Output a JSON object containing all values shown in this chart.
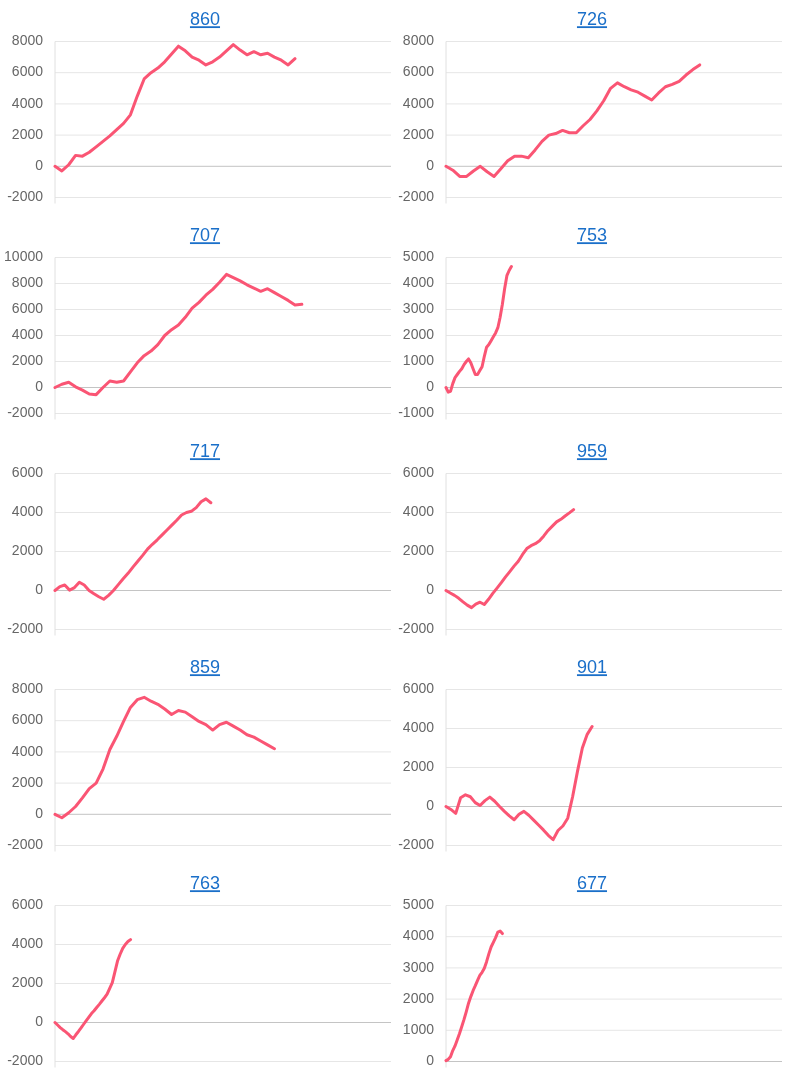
{
  "chart_data": [
    {
      "type": "line",
      "title": "860",
      "categories": [
        null,
        null,
        null,
        null,
        null,
        null,
        null,
        null,
        null,
        null,
        null,
        null,
        null,
        null,
        null,
        null,
        null,
        null,
        null,
        null,
        null,
        null,
        null,
        null,
        null,
        null,
        null,
        null,
        null,
        null,
        null,
        null,
        null,
        null,
        null,
        null,
        null,
        null,
        null,
        null,
        null,
        null,
        null,
        null,
        null,
        null,
        null,
        null,
        null,
        null
      ],
      "values": [
        0,
        -300,
        100,
        700,
        650,
        900,
        1250,
        1600,
        1950,
        2350,
        2750,
        3300,
        4500,
        5600,
        6000,
        6300,
        6700,
        7200,
        7700,
        7400,
        7000,
        6800,
        6500,
        6700,
        7000,
        7400,
        7800,
        7450,
        7150,
        7350,
        7150,
        7250,
        7000,
        6800,
        6500,
        6900,
        null,
        null,
        null,
        null,
        null,
        null,
        null,
        null,
        null,
        null,
        null,
        null,
        null,
        null
      ],
      "color": "#fa5574",
      "ylim": [
        -2000,
        8000
      ],
      "yticks": [
        -2000,
        0,
        2000,
        4000,
        6000,
        8000
      ],
      "grid": "y",
      "tick_labels": "y"
    },
    {
      "type": "line",
      "title": "726",
      "categories": [
        null,
        null,
        null,
        null,
        null,
        null,
        null,
        null,
        null,
        null,
        null,
        null,
        null,
        null,
        null,
        null,
        null,
        null,
        null,
        null,
        null,
        null,
        null,
        null,
        null,
        null,
        null,
        null,
        null,
        null,
        null,
        null,
        null,
        null,
        null,
        null,
        null,
        null,
        null,
        null,
        null,
        null,
        null,
        null,
        null,
        null,
        null,
        null,
        null,
        null
      ],
      "values": [
        0,
        -250,
        -650,
        -650,
        -300,
        0,
        -350,
        -650,
        -150,
        350,
        650,
        650,
        550,
        1050,
        1600,
        2000,
        2100,
        2300,
        2150,
        2150,
        2600,
        3000,
        3550,
        4200,
        5000,
        5350,
        5100,
        4900,
        4750,
        4500,
        4250,
        4700,
        5100,
        5250,
        5450,
        5850,
        6200,
        6500,
        null,
        null,
        null,
        null,
        null,
        null,
        null,
        null,
        null,
        null,
        null,
        null
      ],
      "color": "#fa5574",
      "ylim": [
        -2000,
        8000
      ],
      "yticks": [
        -2000,
        0,
        2000,
        4000,
        6000,
        8000
      ],
      "grid": "y",
      "tick_labels": "y"
    },
    {
      "type": "line",
      "title": "707",
      "categories": [
        null,
        null,
        null,
        null,
        null,
        null,
        null,
        null,
        null,
        null,
        null,
        null,
        null,
        null,
        null,
        null,
        null,
        null,
        null,
        null,
        null,
        null,
        null,
        null,
        null,
        null,
        null,
        null,
        null,
        null,
        null,
        null,
        null,
        null,
        null,
        null,
        null,
        null,
        null,
        null,
        null,
        null,
        null,
        null,
        null,
        null,
        null,
        null,
        null,
        null
      ],
      "values": [
        0,
        250,
        400,
        50,
        -200,
        -500,
        -550,
        0,
        500,
        400,
        500,
        1200,
        1900,
        2450,
        2800,
        3300,
        4000,
        4450,
        4800,
        5400,
        6100,
        6550,
        7100,
        7550,
        8100,
        8700,
        8450,
        8200,
        7900,
        7650,
        7400,
        7600,
        7300,
        7000,
        6700,
        6350,
        6400,
        null,
        null,
        null,
        null,
        null,
        null,
        null,
        null,
        null,
        null,
        null,
        null,
        null
      ],
      "color": "#fa5574",
      "ylim": [
        -2000,
        10000
      ],
      "yticks": [
        -2000,
        0,
        2000,
        4000,
        6000,
        8000,
        10000
      ],
      "grid": "y",
      "tick_labels": "y"
    },
    {
      "type": "line",
      "title": "753",
      "categories": [
        null,
        null,
        null,
        null,
        null,
        null,
        null,
        null,
        null,
        null,
        null,
        null,
        null,
        null,
        null,
        null,
        null,
        null,
        null,
        null,
        null,
        null,
        null,
        null,
        null,
        null,
        null,
        null,
        null,
        null,
        null,
        null,
        null,
        null,
        null,
        null,
        null,
        null,
        null,
        null,
        null,
        null,
        null,
        null,
        null,
        null,
        null,
        null,
        null,
        null,
        null,
        null,
        null,
        null,
        null,
        null,
        null,
        null,
        null,
        null,
        null,
        null,
        null,
        null,
        null,
        null,
        null,
        null,
        null,
        null,
        null,
        null,
        null,
        null,
        null,
        null,
        null,
        null,
        null,
        null,
        null,
        null,
        null,
        null,
        null,
        null,
        null,
        null,
        null,
        null,
        null,
        null,
        null,
        null,
        null,
        null,
        null,
        null,
        null,
        null,
        null,
        null,
        null,
        null,
        null,
        null,
        null,
        null,
        null,
        null,
        null,
        null,
        null,
        null,
        null,
        null,
        null,
        null,
        null,
        null,
        null,
        null,
        null,
        null,
        null,
        null,
        null,
        null,
        null,
        null,
        null,
        null,
        null,
        null,
        null,
        null,
        null,
        null,
        null,
        null,
        null,
        null,
        null,
        null,
        null,
        null,
        null,
        null,
        null,
        null
      ],
      "values": [
        0,
        -180,
        -150,
        150,
        380,
        500,
        620,
        720,
        880,
        1000,
        1100,
        950,
        720,
        500,
        500,
        650,
        800,
        1200,
        1550,
        1650,
        1800,
        1950,
        2100,
        2300,
        2700,
        3200,
        3800,
        4300,
        4500,
        4650,
        null,
        null,
        null,
        null,
        null,
        null,
        null,
        null,
        null,
        null,
        null,
        null,
        null,
        null,
        null,
        null,
        null,
        null,
        null,
        null,
        null,
        null,
        null,
        null,
        null,
        null,
        null,
        null,
        null,
        null,
        null,
        null,
        null,
        null,
        null,
        null,
        null,
        null,
        null,
        null,
        null,
        null,
        null,
        null,
        null,
        null,
        null,
        null,
        null,
        null,
        null,
        null,
        null,
        null,
        null,
        null,
        null,
        null,
        null,
        null,
        null,
        null,
        null,
        null,
        null,
        null,
        null,
        null,
        null,
        null,
        null,
        null,
        null,
        null,
        null,
        null,
        null,
        null,
        null,
        null,
        null,
        null,
        null,
        null,
        null,
        null,
        null,
        null,
        null,
        null,
        null,
        null,
        null,
        null,
        null,
        null,
        null,
        null,
        null,
        null,
        null,
        null,
        null,
        null,
        null,
        null,
        null,
        null,
        null,
        null,
        null,
        null,
        null,
        null,
        null,
        null,
        null,
        null,
        null,
        null
      ],
      "color": "#fa5574",
      "ylim": [
        -1000,
        5000
      ],
      "yticks": [
        -1000,
        0,
        1000,
        2000,
        3000,
        4000,
        5000
      ],
      "grid": "y",
      "tick_labels": "y"
    },
    {
      "type": "line",
      "title": "717",
      "categories": [
        null,
        null,
        null,
        null,
        null,
        null,
        null,
        null,
        null,
        null,
        null,
        null,
        null,
        null,
        null,
        null,
        null,
        null,
        null,
        null,
        null,
        null,
        null,
        null,
        null,
        null,
        null,
        null,
        null,
        null,
        null,
        null,
        null,
        null,
        null,
        null,
        null,
        null,
        null,
        null,
        null,
        null,
        null,
        null,
        null,
        null,
        null,
        null,
        null,
        null,
        null,
        null,
        null,
        null,
        null,
        null,
        null,
        null,
        null,
        null,
        null,
        null,
        null,
        null,
        null,
        null,
        null,
        null,
        null,
        null
      ],
      "values": [
        0,
        200,
        280,
        20,
        150,
        420,
        280,
        0,
        -170,
        -320,
        -450,
        -250,
        0,
        300,
        600,
        880,
        1200,
        1500,
        1800,
        2120,
        2370,
        2600,
        2850,
        3100,
        3350,
        3600,
        3870,
        4000,
        4060,
        4250,
        4550,
        4700,
        4500,
        null,
        null,
        null,
        null,
        null,
        null,
        null,
        null,
        null,
        null,
        null,
        null,
        null,
        null,
        null,
        null,
        null,
        null,
        null,
        null,
        null,
        null,
        null,
        null,
        null,
        null,
        null,
        null,
        null,
        null,
        null,
        null,
        null,
        null,
        null,
        null,
        null
      ],
      "color": "#fa5574",
      "ylim": [
        -2000,
        6000
      ],
      "yticks": [
        -2000,
        0,
        2000,
        4000,
        6000
      ],
      "grid": "y",
      "tick_labels": "y"
    },
    {
      "type": "line",
      "title": "959",
      "categories": [
        null,
        null,
        null,
        null,
        null,
        null,
        null,
        null,
        null,
        null,
        null,
        null,
        null,
        null,
        null,
        null,
        null,
        null,
        null,
        null,
        null,
        null,
        null,
        null,
        null,
        null,
        null,
        null,
        null,
        null,
        null,
        null,
        null,
        null,
        null,
        null,
        null,
        null,
        null,
        null,
        null,
        null,
        null,
        null,
        null,
        null,
        null,
        null,
        null,
        null,
        null,
        null,
        null,
        null,
        null,
        null,
        null,
        null,
        null,
        null,
        null,
        null,
        null,
        null,
        null,
        null,
        null,
        null,
        null,
        null,
        null,
        null,
        null,
        null,
        null,
        null,
        null,
        null,
        null,
        null
      ],
      "values": [
        0,
        -130,
        -250,
        -400,
        -580,
        -750,
        -880,
        -700,
        -600,
        -720,
        -450,
        -150,
        120,
        400,
        700,
        970,
        1250,
        1500,
        1850,
        2150,
        2300,
        2400,
        2550,
        2800,
        3080,
        3300,
        3520,
        3650,
        3820,
        3980,
        4150,
        null,
        null,
        null,
        null,
        null,
        null,
        null,
        null,
        null,
        null,
        null,
        null,
        null,
        null,
        null,
        null,
        null,
        null,
        null,
        null,
        null,
        null,
        null,
        null,
        null,
        null,
        null,
        null,
        null,
        null,
        null,
        null,
        null,
        null,
        null,
        null,
        null,
        null,
        null,
        null,
        null,
        null,
        null,
        null,
        null,
        null,
        null,
        null,
        null
      ],
      "color": "#fa5574",
      "ylim": [
        -2000,
        6000
      ],
      "yticks": [
        -2000,
        0,
        2000,
        4000,
        6000
      ],
      "grid": "y",
      "tick_labels": "y"
    },
    {
      "type": "line",
      "title": "859",
      "categories": [
        null,
        null,
        null,
        null,
        null,
        null,
        null,
        null,
        null,
        null,
        null,
        null,
        null,
        null,
        null,
        null,
        null,
        null,
        null,
        null,
        null,
        null,
        null,
        null,
        null,
        null,
        null,
        null,
        null,
        null,
        null,
        null,
        null,
        null,
        null,
        null,
        null,
        null,
        null,
        null,
        null,
        null,
        null,
        null,
        null,
        null,
        null,
        null,
        null,
        null
      ],
      "values": [
        0,
        -220,
        100,
        500,
        1050,
        1650,
        2000,
        2900,
        4150,
        5000,
        5950,
        6850,
        7350,
        7500,
        7250,
        7050,
        6750,
        6400,
        6650,
        6550,
        6250,
        5950,
        5750,
        5400,
        5750,
        5900,
        5650,
        5400,
        5100,
        4950,
        4700,
        4450,
        4200,
        null,
        null,
        null,
        null,
        null,
        null,
        null,
        null,
        null,
        null,
        null,
        null,
        null,
        null,
        null,
        null,
        null
      ],
      "color": "#fa5574",
      "ylim": [
        -2000,
        8000
      ],
      "yticks": [
        -2000,
        0,
        2000,
        4000,
        6000,
        8000
      ],
      "grid": "y",
      "tick_labels": "y"
    },
    {
      "type": "line",
      "title": "901",
      "categories": [
        null,
        null,
        null,
        null,
        null,
        null,
        null,
        null,
        null,
        null,
        null,
        null,
        null,
        null,
        null,
        null,
        null,
        null,
        null,
        null,
        null,
        null,
        null,
        null,
        null,
        null,
        null,
        null,
        null,
        null,
        null,
        null,
        null,
        null,
        null,
        null,
        null,
        null,
        null,
        null,
        null,
        null,
        null,
        null,
        null,
        null,
        null,
        null,
        null,
        null,
        null,
        null,
        null,
        null,
        null,
        null,
        null,
        null,
        null,
        null,
        null,
        null,
        null,
        null,
        null,
        null,
        null,
        null,
        null,
        null
      ],
      "values": [
        0,
        -150,
        -350,
        450,
        600,
        500,
        200,
        50,
        300,
        480,
        270,
        0,
        -250,
        -480,
        -680,
        -400,
        -250,
        -450,
        -700,
        -950,
        -1200,
        -1480,
        -1700,
        -1230,
        -1000,
        -600,
        500,
        1800,
        3000,
        3700,
        4100,
        null,
        null,
        null,
        null,
        null,
        null,
        null,
        null,
        null,
        null,
        null,
        null,
        null,
        null,
        null,
        null,
        null,
        null,
        null,
        null,
        null,
        null,
        null,
        null,
        null,
        null,
        null,
        null,
        null,
        null,
        null,
        null,
        null,
        null,
        null,
        null,
        null,
        null,
        null
      ],
      "color": "#fa5574",
      "ylim": [
        -2000,
        6000
      ],
      "yticks": [
        -2000,
        0,
        2000,
        4000,
        6000
      ],
      "grid": "y",
      "tick_labels": "y"
    },
    {
      "type": "line",
      "title": "763",
      "categories": [
        null,
        null,
        null,
        null,
        null,
        null,
        null,
        null,
        null,
        null,
        null,
        null,
        null,
        null,
        null,
        null,
        null,
        null,
        null,
        null,
        null,
        null,
        null,
        null,
        null,
        null,
        null,
        null,
        null,
        null,
        null,
        null,
        null,
        null,
        null,
        null,
        null,
        null,
        null,
        null,
        null,
        null,
        null,
        null,
        null,
        null,
        null,
        null,
        null,
        null,
        null,
        null,
        null,
        null,
        null,
        null,
        null,
        null,
        null,
        null,
        null,
        null,
        null,
        null,
        null,
        null,
        null,
        null,
        null,
        null,
        null,
        null,
        null,
        null,
        null,
        null,
        null,
        null,
        null,
        null,
        null,
        null,
        null,
        null,
        null,
        null,
        null,
        null,
        null,
        null,
        null,
        null,
        null,
        null,
        null,
        null,
        null,
        null,
        null,
        null,
        null,
        null,
        null,
        null,
        null,
        null,
        null,
        null,
        null,
        null,
        null,
        null,
        null,
        null,
        null,
        null,
        null,
        null,
        null,
        null,
        null,
        null,
        null,
        null,
        null,
        null,
        null,
        null,
        null,
        null
      ],
      "values": [
        0,
        -130,
        -260,
        -370,
        -470,
        -580,
        -720,
        -820,
        -630,
        -460,
        -280,
        -90,
        100,
        280,
        460,
        600,
        770,
        930,
        1100,
        1270,
        1450,
        1750,
        2050,
        2600,
        3150,
        3500,
        3800,
        4000,
        4150,
        4250,
        null,
        null,
        null,
        null,
        null,
        null,
        null,
        null,
        null,
        null,
        null,
        null,
        null,
        null,
        null,
        null,
        null,
        null,
        null,
        null,
        null,
        null,
        null,
        null,
        null,
        null,
        null,
        null,
        null,
        null,
        null,
        null,
        null,
        null,
        null,
        null,
        null,
        null,
        null,
        null,
        null,
        null,
        null,
        null,
        null,
        null,
        null,
        null,
        null,
        null,
        null,
        null,
        null,
        null,
        null,
        null,
        null,
        null,
        null,
        null,
        null,
        null,
        null,
        null,
        null,
        null,
        null,
        null,
        null,
        null,
        null,
        null,
        null,
        null,
        null,
        null,
        null,
        null,
        null,
        null,
        null,
        null,
        null,
        null,
        null,
        null,
        null,
        null,
        null,
        null,
        null,
        null,
        null,
        null,
        null,
        null,
        null,
        null,
        null,
        null
      ],
      "color": "#fa5574",
      "ylim": [
        -2000,
        6000
      ],
      "yticks": [
        -2000,
        0,
        2000,
        4000,
        6000
      ],
      "grid": "y",
      "tick_labels": "y"
    },
    {
      "type": "line",
      "title": "677",
      "categories": [
        null,
        null,
        null,
        null,
        null,
        null,
        null,
        null,
        null,
        null,
        null,
        null,
        null,
        null,
        null,
        null,
        null,
        null,
        null,
        null,
        null,
        null,
        null,
        null,
        null,
        null,
        null,
        null,
        null,
        null,
        null,
        null,
        null,
        null,
        null,
        null,
        null,
        null,
        null,
        null,
        null,
        null,
        null,
        null,
        null,
        null,
        null,
        null,
        null,
        null,
        null,
        null,
        null,
        null,
        null,
        null,
        null,
        null,
        null,
        null,
        null,
        null,
        null,
        null,
        null,
        null,
        null,
        null,
        null,
        null,
        null,
        null,
        null,
        null,
        null,
        null,
        null,
        null,
        null,
        null,
        null,
        null,
        null,
        null,
        null,
        null,
        null,
        null,
        null,
        null,
        null,
        null,
        null,
        null,
        null,
        null,
        null,
        null,
        null,
        null,
        null,
        null,
        null,
        null,
        null,
        null,
        null,
        null,
        null,
        null,
        null,
        null,
        null,
        null,
        null,
        null,
        null,
        null,
        null,
        null,
        null,
        null,
        null,
        null,
        null,
        null,
        null,
        null,
        null,
        null,
        null,
        null,
        null,
        null,
        null,
        null,
        null,
        null,
        null,
        null,
        null,
        null,
        null,
        null,
        null,
        null,
        null,
        null,
        null,
        null
      ],
      "values": [
        30,
        70,
        150,
        350,
        500,
        700,
        900,
        1120,
        1350,
        1600,
        1870,
        2080,
        2270,
        2430,
        2600,
        2760,
        2860,
        2990,
        3200,
        3450,
        3670,
        3820,
        3970,
        4150,
        4180,
        4100,
        null,
        null,
        null,
        null,
        null,
        null,
        null,
        null,
        null,
        null,
        null,
        null,
        null,
        null,
        null,
        null,
        null,
        null,
        null,
        null,
        null,
        null,
        null,
        null,
        null,
        null,
        null,
        null,
        null,
        null,
        null,
        null,
        null,
        null,
        null,
        null,
        null,
        null,
        null,
        null,
        null,
        null,
        null,
        null,
        null,
        null,
        null,
        null,
        null,
        null,
        null,
        null,
        null,
        null,
        null,
        null,
        null,
        null,
        null,
        null,
        null,
        null,
        null,
        null,
        null,
        null,
        null,
        null,
        null,
        null,
        null,
        null,
        null,
        null,
        null,
        null,
        null,
        null,
        null,
        null,
        null,
        null,
        null,
        null,
        null,
        null,
        null,
        null,
        null,
        null,
        null,
        null,
        null,
        null,
        null,
        null,
        null,
        null,
        null,
        null,
        null,
        null,
        null,
        null,
        null,
        null,
        null,
        null,
        null,
        null,
        null,
        null,
        null,
        null,
        null,
        null,
        null,
        null,
        null,
        null,
        null,
        null,
        null,
        null
      ],
      "color": "#fa5574",
      "ylim": [
        0,
        5000
      ],
      "yticks": [
        0,
        1000,
        2000,
        3000,
        4000,
        5000
      ],
      "grid": "y",
      "tick_labels": "y"
    }
  ]
}
